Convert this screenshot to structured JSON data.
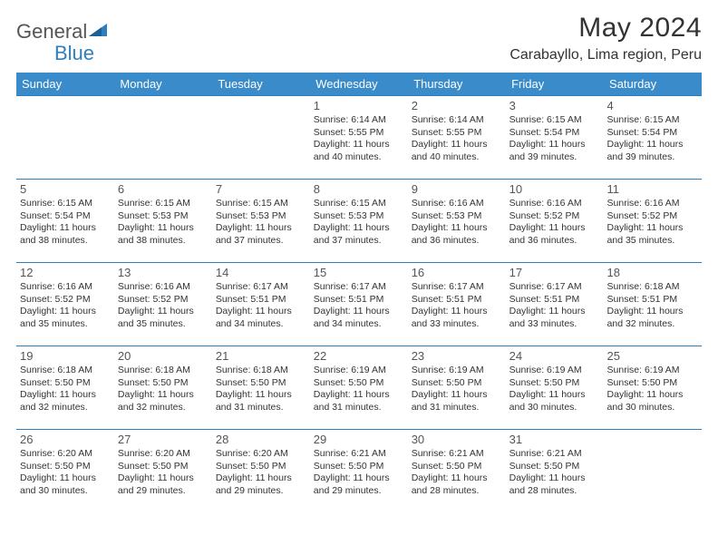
{
  "brand": {
    "part1": "General",
    "part2": "Blue"
  },
  "title": "May 2024",
  "location": "Carabayllo, Lima region, Peru",
  "colors": {
    "header_bg": "#3a8bc9",
    "header_text": "#ffffff",
    "rule": "#2f7fbf",
    "brand_gray": "#555555",
    "brand_blue": "#2f7fbf",
    "body_text": "#333333",
    "page_bg": "#ffffff"
  },
  "weekdays": [
    "Sunday",
    "Monday",
    "Tuesday",
    "Wednesday",
    "Thursday",
    "Friday",
    "Saturday"
  ],
  "weeks": [
    [
      null,
      null,
      null,
      {
        "n": "1",
        "sr": "Sunrise: 6:14 AM",
        "ss": "Sunset: 5:55 PM",
        "d1": "Daylight: 11 hours",
        "d2": "and 40 minutes."
      },
      {
        "n": "2",
        "sr": "Sunrise: 6:14 AM",
        "ss": "Sunset: 5:55 PM",
        "d1": "Daylight: 11 hours",
        "d2": "and 40 minutes."
      },
      {
        "n": "3",
        "sr": "Sunrise: 6:15 AM",
        "ss": "Sunset: 5:54 PM",
        "d1": "Daylight: 11 hours",
        "d2": "and 39 minutes."
      },
      {
        "n": "4",
        "sr": "Sunrise: 6:15 AM",
        "ss": "Sunset: 5:54 PM",
        "d1": "Daylight: 11 hours",
        "d2": "and 39 minutes."
      }
    ],
    [
      {
        "n": "5",
        "sr": "Sunrise: 6:15 AM",
        "ss": "Sunset: 5:54 PM",
        "d1": "Daylight: 11 hours",
        "d2": "and 38 minutes."
      },
      {
        "n": "6",
        "sr": "Sunrise: 6:15 AM",
        "ss": "Sunset: 5:53 PM",
        "d1": "Daylight: 11 hours",
        "d2": "and 38 minutes."
      },
      {
        "n": "7",
        "sr": "Sunrise: 6:15 AM",
        "ss": "Sunset: 5:53 PM",
        "d1": "Daylight: 11 hours",
        "d2": "and 37 minutes."
      },
      {
        "n": "8",
        "sr": "Sunrise: 6:15 AM",
        "ss": "Sunset: 5:53 PM",
        "d1": "Daylight: 11 hours",
        "d2": "and 37 minutes."
      },
      {
        "n": "9",
        "sr": "Sunrise: 6:16 AM",
        "ss": "Sunset: 5:53 PM",
        "d1": "Daylight: 11 hours",
        "d2": "and 36 minutes."
      },
      {
        "n": "10",
        "sr": "Sunrise: 6:16 AM",
        "ss": "Sunset: 5:52 PM",
        "d1": "Daylight: 11 hours",
        "d2": "and 36 minutes."
      },
      {
        "n": "11",
        "sr": "Sunrise: 6:16 AM",
        "ss": "Sunset: 5:52 PM",
        "d1": "Daylight: 11 hours",
        "d2": "and 35 minutes."
      }
    ],
    [
      {
        "n": "12",
        "sr": "Sunrise: 6:16 AM",
        "ss": "Sunset: 5:52 PM",
        "d1": "Daylight: 11 hours",
        "d2": "and 35 minutes."
      },
      {
        "n": "13",
        "sr": "Sunrise: 6:16 AM",
        "ss": "Sunset: 5:52 PM",
        "d1": "Daylight: 11 hours",
        "d2": "and 35 minutes."
      },
      {
        "n": "14",
        "sr": "Sunrise: 6:17 AM",
        "ss": "Sunset: 5:51 PM",
        "d1": "Daylight: 11 hours",
        "d2": "and 34 minutes."
      },
      {
        "n": "15",
        "sr": "Sunrise: 6:17 AM",
        "ss": "Sunset: 5:51 PM",
        "d1": "Daylight: 11 hours",
        "d2": "and 34 minutes."
      },
      {
        "n": "16",
        "sr": "Sunrise: 6:17 AM",
        "ss": "Sunset: 5:51 PM",
        "d1": "Daylight: 11 hours",
        "d2": "and 33 minutes."
      },
      {
        "n": "17",
        "sr": "Sunrise: 6:17 AM",
        "ss": "Sunset: 5:51 PM",
        "d1": "Daylight: 11 hours",
        "d2": "and 33 minutes."
      },
      {
        "n": "18",
        "sr": "Sunrise: 6:18 AM",
        "ss": "Sunset: 5:51 PM",
        "d1": "Daylight: 11 hours",
        "d2": "and 32 minutes."
      }
    ],
    [
      {
        "n": "19",
        "sr": "Sunrise: 6:18 AM",
        "ss": "Sunset: 5:50 PM",
        "d1": "Daylight: 11 hours",
        "d2": "and 32 minutes."
      },
      {
        "n": "20",
        "sr": "Sunrise: 6:18 AM",
        "ss": "Sunset: 5:50 PM",
        "d1": "Daylight: 11 hours",
        "d2": "and 32 minutes."
      },
      {
        "n": "21",
        "sr": "Sunrise: 6:18 AM",
        "ss": "Sunset: 5:50 PM",
        "d1": "Daylight: 11 hours",
        "d2": "and 31 minutes."
      },
      {
        "n": "22",
        "sr": "Sunrise: 6:19 AM",
        "ss": "Sunset: 5:50 PM",
        "d1": "Daylight: 11 hours",
        "d2": "and 31 minutes."
      },
      {
        "n": "23",
        "sr": "Sunrise: 6:19 AM",
        "ss": "Sunset: 5:50 PM",
        "d1": "Daylight: 11 hours",
        "d2": "and 31 minutes."
      },
      {
        "n": "24",
        "sr": "Sunrise: 6:19 AM",
        "ss": "Sunset: 5:50 PM",
        "d1": "Daylight: 11 hours",
        "d2": "and 30 minutes."
      },
      {
        "n": "25",
        "sr": "Sunrise: 6:19 AM",
        "ss": "Sunset: 5:50 PM",
        "d1": "Daylight: 11 hours",
        "d2": "and 30 minutes."
      }
    ],
    [
      {
        "n": "26",
        "sr": "Sunrise: 6:20 AM",
        "ss": "Sunset: 5:50 PM",
        "d1": "Daylight: 11 hours",
        "d2": "and 30 minutes."
      },
      {
        "n": "27",
        "sr": "Sunrise: 6:20 AM",
        "ss": "Sunset: 5:50 PM",
        "d1": "Daylight: 11 hours",
        "d2": "and 29 minutes."
      },
      {
        "n": "28",
        "sr": "Sunrise: 6:20 AM",
        "ss": "Sunset: 5:50 PM",
        "d1": "Daylight: 11 hours",
        "d2": "and 29 minutes."
      },
      {
        "n": "29",
        "sr": "Sunrise: 6:21 AM",
        "ss": "Sunset: 5:50 PM",
        "d1": "Daylight: 11 hours",
        "d2": "and 29 minutes."
      },
      {
        "n": "30",
        "sr": "Sunrise: 6:21 AM",
        "ss": "Sunset: 5:50 PM",
        "d1": "Daylight: 11 hours",
        "d2": "and 28 minutes."
      },
      {
        "n": "31",
        "sr": "Sunrise: 6:21 AM",
        "ss": "Sunset: 5:50 PM",
        "d1": "Daylight: 11 hours",
        "d2": "and 28 minutes."
      },
      null
    ]
  ]
}
